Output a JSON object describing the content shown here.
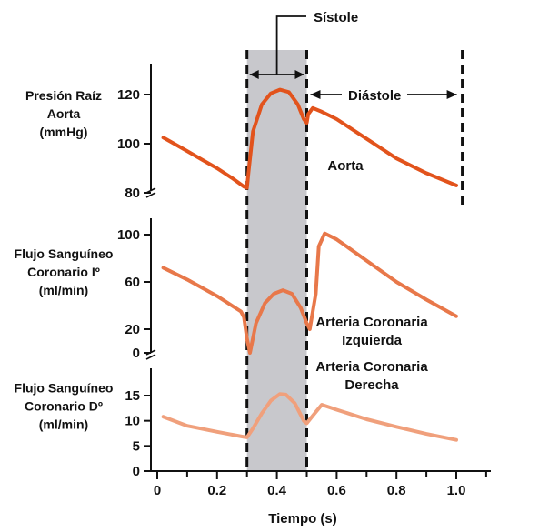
{
  "chart_data": [
    {
      "type": "line",
      "panel": "aorta",
      "ylabel": [
        "Presión Raíz",
        "Aorta",
        "(mmHg)"
      ],
      "ylim": [
        75,
        127
      ],
      "yticks": [
        80,
        100,
        120
      ],
      "xlim": [
        0,
        1.1
      ],
      "series": [
        {
          "name": "Aorta",
          "color": "#E2531C",
          "x": [
            0.02,
            0.05,
            0.1,
            0.15,
            0.2,
            0.25,
            0.29,
            0.3,
            0.305,
            0.32,
            0.35,
            0.38,
            0.41,
            0.44,
            0.47,
            0.49,
            0.5,
            0.505,
            0.52,
            0.55,
            0.6,
            0.7,
            0.8,
            0.9,
            1.0
          ],
          "values": [
            102.5,
            100.5,
            97,
            93.5,
            90,
            86,
            82.5,
            82,
            88,
            105,
            116,
            120.5,
            122,
            121,
            116,
            110,
            108.5,
            112,
            114.5,
            113,
            110,
            102,
            94,
            88,
            83
          ]
        }
      ],
      "annotations": [
        "Aorta"
      ]
    },
    {
      "type": "line",
      "panel": "left-coronary",
      "ylabel": [
        "Flujo Sanguíneo",
        "Coronario Iº",
        "(ml/min)"
      ],
      "ylim": [
        0,
        105
      ],
      "yticks": [
        0,
        20,
        60,
        100
      ],
      "xlim": [
        0,
        1.1
      ],
      "series": [
        {
          "name": "Arteria Coronaria Izquierda",
          "color": "#E8784A",
          "x": [
            0.02,
            0.1,
            0.2,
            0.28,
            0.29,
            0.3,
            0.31,
            0.33,
            0.36,
            0.39,
            0.42,
            0.45,
            0.48,
            0.5,
            0.51,
            0.53,
            0.54,
            0.56,
            0.6,
            0.7,
            0.8,
            0.9,
            1.0
          ],
          "values": [
            72,
            62,
            48,
            35,
            30,
            12,
            0,
            25,
            42,
            50,
            53,
            50,
            38,
            25,
            20,
            50,
            90,
            101,
            96,
            78,
            60,
            45,
            31
          ]
        }
      ],
      "annotations": [
        "Arteria Coronaria",
        "Izquierda"
      ]
    },
    {
      "type": "line",
      "panel": "right-coronary",
      "ylabel": [
        "Flujo Sanguíneo",
        "Coronario Dº",
        "(ml/min)"
      ],
      "ylim": [
        0,
        19
      ],
      "yticks": [
        0,
        5,
        10,
        15
      ],
      "xlim": [
        0,
        1.1
      ],
      "xticks": [
        "0",
        "0.2",
        "0.4",
        "0.6",
        "0.8",
        "1.0"
      ],
      "xtick_values": [
        0,
        0.2,
        0.4,
        0.6,
        0.8,
        1.0
      ],
      "xlabel": "Tiempo (s)",
      "series": [
        {
          "name": "Arteria Coronaria Derecha",
          "color": "#F0A07C",
          "x": [
            0.02,
            0.1,
            0.2,
            0.29,
            0.3,
            0.32,
            0.35,
            0.38,
            0.41,
            0.43,
            0.46,
            0.49,
            0.5,
            0.52,
            0.55,
            0.6,
            0.7,
            0.8,
            0.9,
            1.0
          ],
          "values": [
            10.8,
            9,
            7.8,
            6.8,
            6.7,
            8.5,
            11.5,
            14,
            15.3,
            15.2,
            13.5,
            10,
            9.5,
            11,
            13.2,
            12.2,
            10.3,
            8.8,
            7.4,
            6.2
          ]
        }
      ],
      "annotations": [
        "Arteria Coronaria",
        "Derecha"
      ]
    }
  ],
  "phases": {
    "systole": {
      "label": "Sístole",
      "start": 0.3,
      "end": 0.5
    },
    "diastole": {
      "label": "Diástole",
      "start": 0.5,
      "end": 1.02
    }
  },
  "colors": {
    "systole_band": "#C8C8CC",
    "axis": "#111111"
  }
}
